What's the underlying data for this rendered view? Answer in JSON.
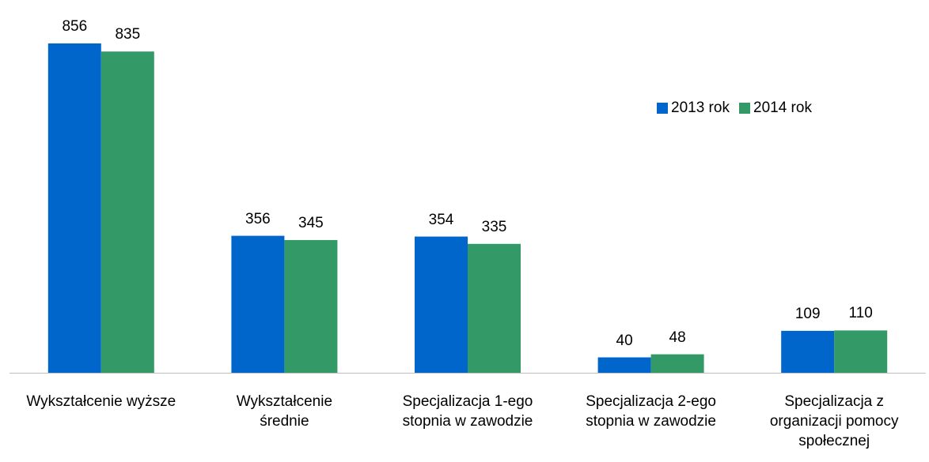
{
  "chart_data": {
    "type": "bar",
    "categories": [
      "Wykształcenie wyższe",
      "Wykształcenie średnie",
      "Specjalizacja 1-ego stopnia w zawodzie",
      "Specjalizacja 2-ego stopnia w zawodzie",
      "Specjalizacja z organizacji pomocy społecznej"
    ],
    "series": [
      {
        "name": "2013 rok",
        "color": "#0066cc",
        "values": [
          856,
          356,
          354,
          40,
          109
        ]
      },
      {
        "name": "2014 rok",
        "color": "#339966",
        "values": [
          835,
          345,
          335,
          48,
          110
        ]
      }
    ],
    "legend": "upper right"
  }
}
